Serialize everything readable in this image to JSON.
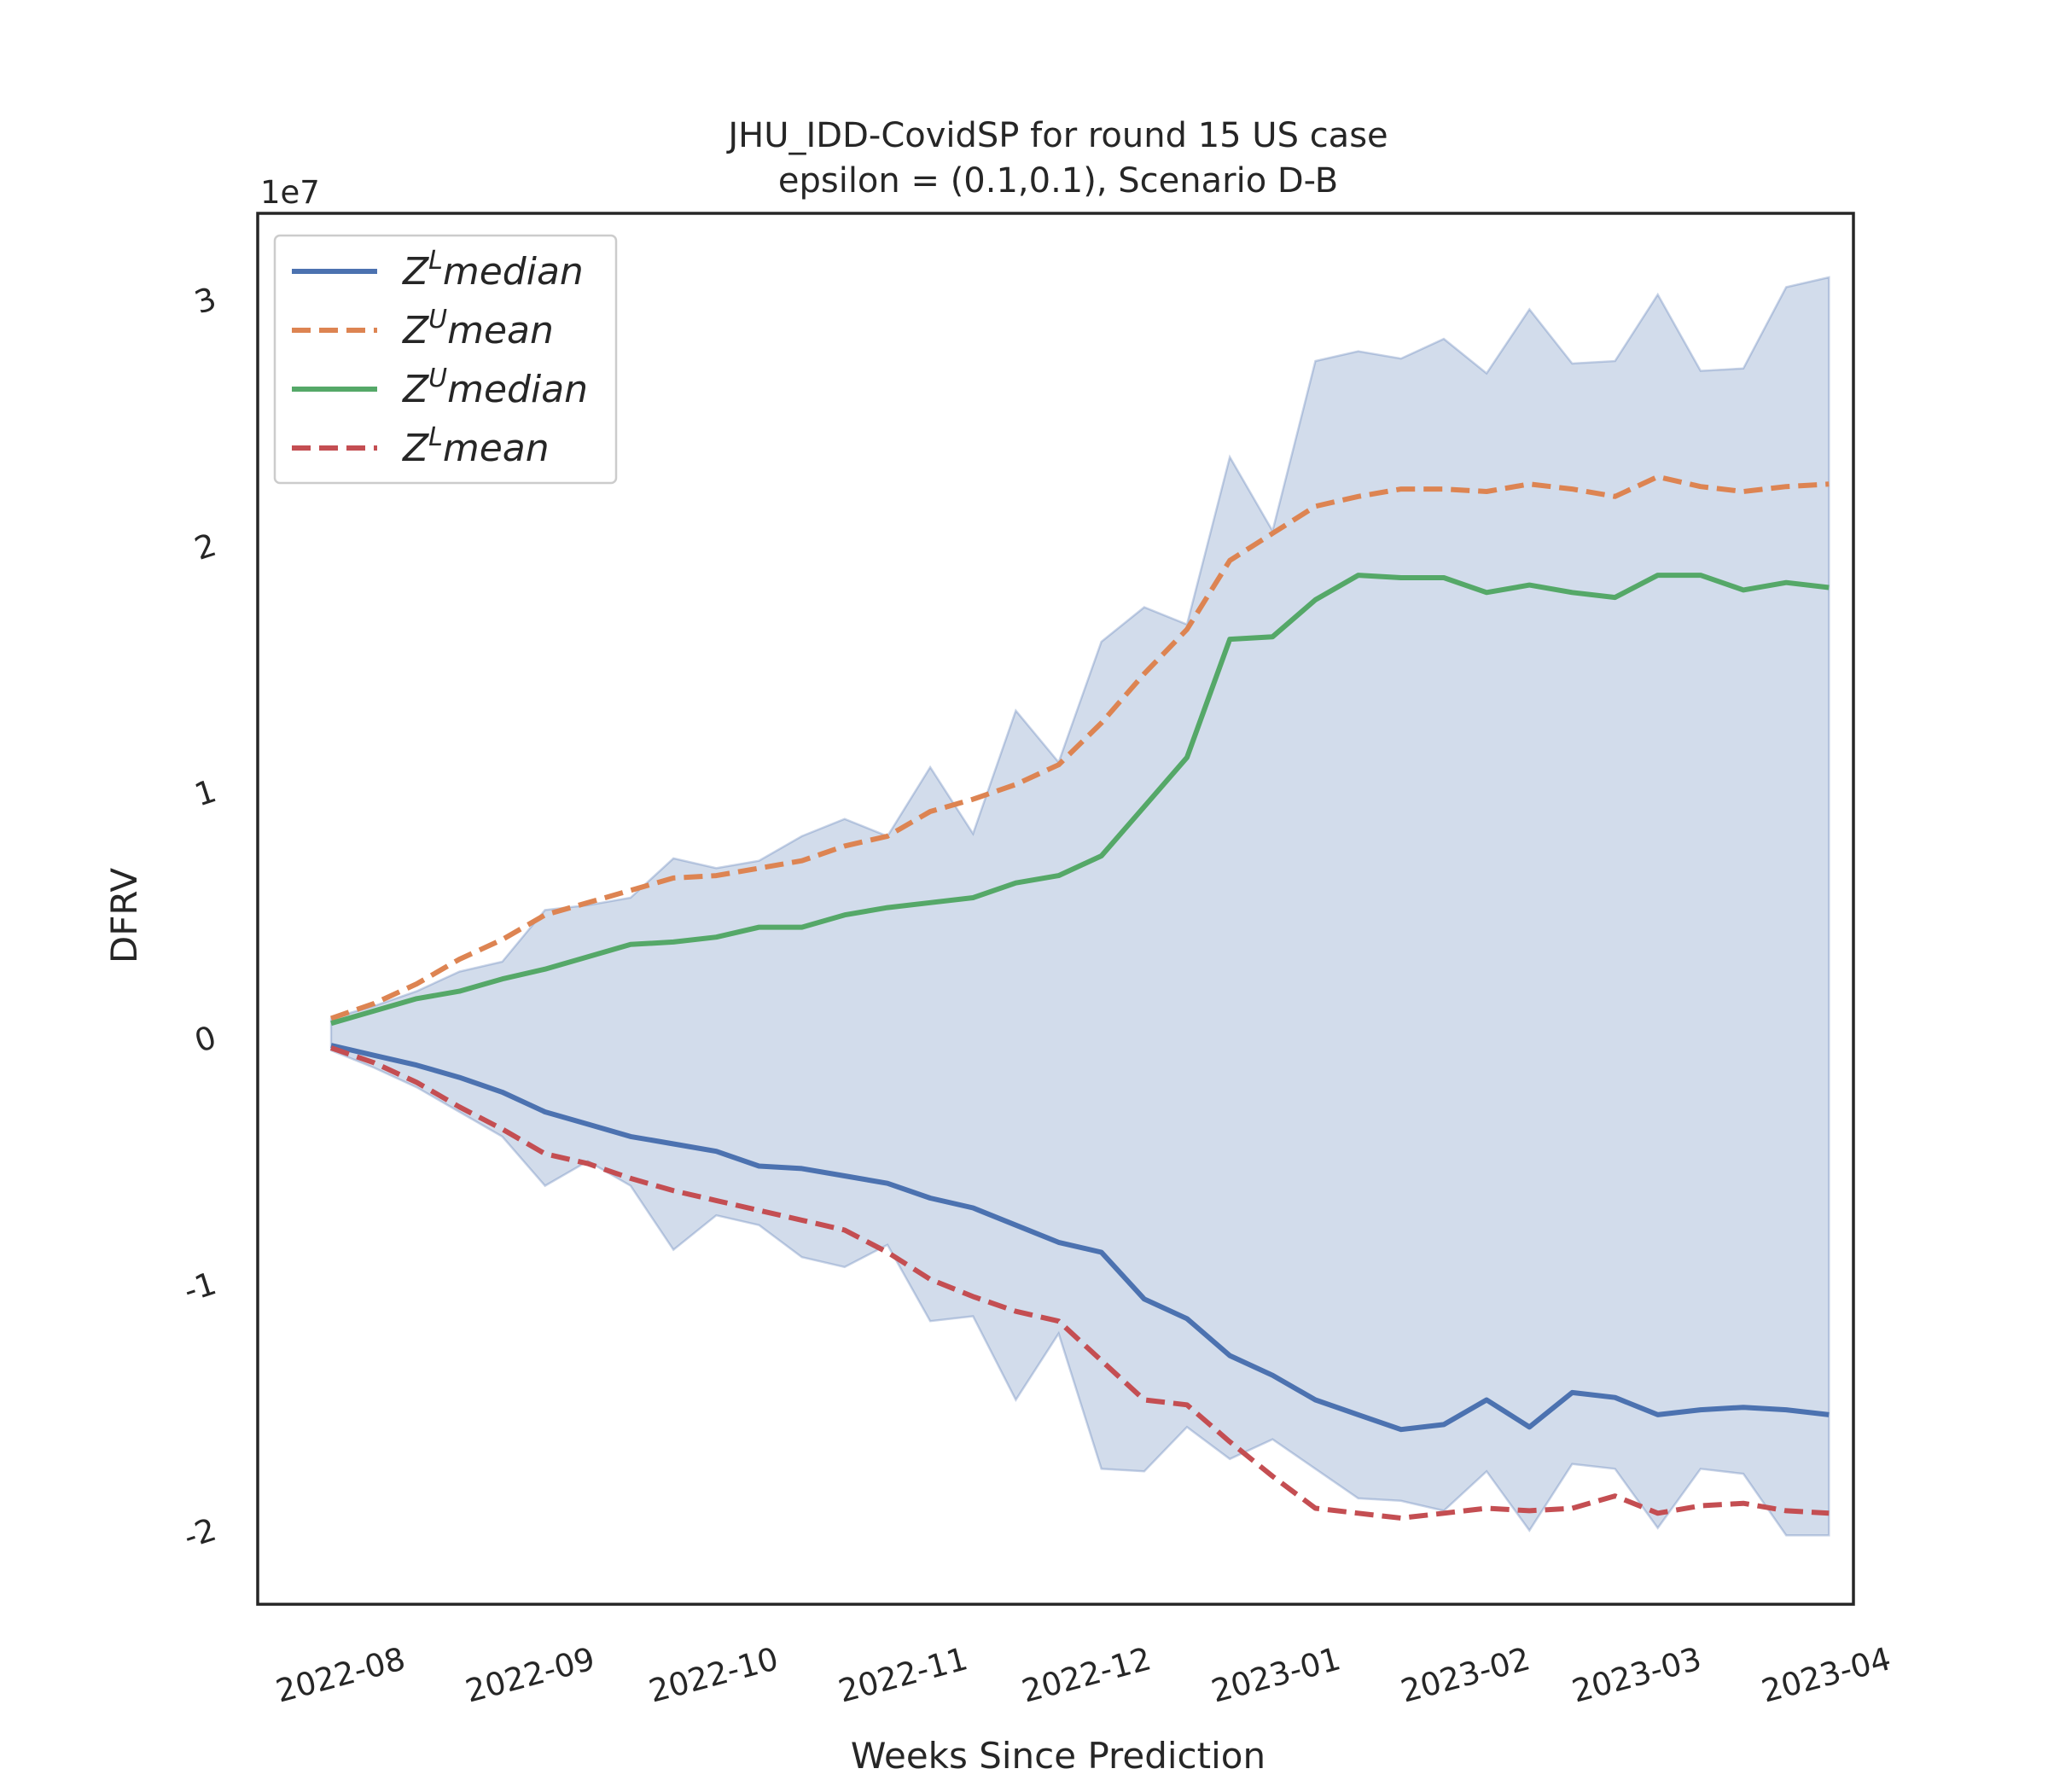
{
  "chart_data": {
    "type": "line",
    "title_line1": "JHU_IDD-CovidSP for round 15 US  case",
    "title_line2": "epsilon = (0.1,0.1), Scenario D-B",
    "xlabel": "Weeks Since Prediction",
    "ylabel": "DFRV",
    "y_multiplier": "1e7",
    "ylim": [
      -2.3,
      3.35
    ],
    "xlim": [
      "2022-07-18",
      "2023-04-05"
    ],
    "x_ticks": [
      "2022-08",
      "2022-09",
      "2022-10",
      "2022-11",
      "2022-12",
      "2023-01",
      "2023-02",
      "2023-03",
      "2023-04"
    ],
    "x_tick_dates": [
      "2022-08-01",
      "2022-09-01",
      "2022-10-01",
      "2022-11-01",
      "2022-12-01",
      "2023-01-01",
      "2023-02-01",
      "2023-03-01",
      "2023-04-01"
    ],
    "y_ticks": [
      -2,
      -1,
      0,
      1,
      2,
      3
    ],
    "grid": false,
    "legend_position": "upper-left",
    "x": [
      "2022-07-30",
      "2022-08-06",
      "2022-08-13",
      "2022-08-20",
      "2022-08-27",
      "2022-09-03",
      "2022-09-10",
      "2022-09-17",
      "2022-09-24",
      "2022-10-01",
      "2022-10-08",
      "2022-10-15",
      "2022-10-22",
      "2022-10-29",
      "2022-11-05",
      "2022-11-12",
      "2022-11-19",
      "2022-11-26",
      "2022-12-03",
      "2022-12-10",
      "2022-12-17",
      "2022-12-24",
      "2022-12-31",
      "2023-01-07",
      "2023-01-14",
      "2023-01-21",
      "2023-01-28",
      "2023-02-04",
      "2023-02-11",
      "2023-02-18",
      "2023-02-25",
      "2023-03-04",
      "2023-03-11",
      "2023-03-18",
      "2023-03-25",
      "2023-04-01"
    ],
    "series": [
      {
        "name": "Z",
        "sup": "L",
        "suffix": "median",
        "color": "#4c72b0",
        "dash": "solid",
        "values": [
          -0.03,
          -0.07,
          -0.11,
          -0.16,
          -0.22,
          -0.3,
          -0.35,
          -0.4,
          -0.43,
          -0.46,
          -0.52,
          -0.53,
          -0.56,
          -0.59,
          -0.65,
          -0.69,
          -0.76,
          -0.83,
          -0.87,
          -1.06,
          -1.14,
          -1.29,
          -1.37,
          -1.47,
          -1.53,
          -1.59,
          -1.57,
          -1.47,
          -1.58,
          -1.44,
          -1.46,
          -1.53,
          -1.51,
          -1.5,
          -1.51,
          -1.53
        ]
      },
      {
        "name": "Z",
        "sup": "U",
        "suffix": "mean",
        "color": "#dd8452",
        "dash": "dashed",
        "values": [
          0.08,
          0.14,
          0.22,
          0.32,
          0.4,
          0.5,
          0.55,
          0.6,
          0.65,
          0.66,
          0.69,
          0.72,
          0.78,
          0.82,
          0.92,
          0.97,
          1.03,
          1.11,
          1.28,
          1.48,
          1.66,
          1.94,
          2.05,
          2.16,
          2.2,
          2.23,
          2.23,
          2.22,
          2.25,
          2.23,
          2.2,
          2.28,
          2.24,
          2.22,
          2.24,
          2.25
        ]
      },
      {
        "name": "Z",
        "sup": "U",
        "suffix": "median",
        "color": "#55a868",
        "dash": "solid",
        "values": [
          0.06,
          0.11,
          0.16,
          0.19,
          0.24,
          0.28,
          0.33,
          0.38,
          0.39,
          0.41,
          0.45,
          0.45,
          0.5,
          0.53,
          0.55,
          0.57,
          0.63,
          0.66,
          0.74,
          0.94,
          1.14,
          1.62,
          1.63,
          1.78,
          1.88,
          1.87,
          1.87,
          1.81,
          1.84,
          1.81,
          1.79,
          1.88,
          1.88,
          1.82,
          1.85,
          1.83
        ]
      },
      {
        "name": "Z",
        "sup": "L",
        "suffix": "mean",
        "color": "#c44e52",
        "dash": "dashed",
        "values": [
          -0.04,
          -0.1,
          -0.18,
          -0.28,
          -0.37,
          -0.47,
          -0.51,
          -0.57,
          -0.62,
          -0.66,
          -0.7,
          -0.74,
          -0.78,
          -0.87,
          -0.98,
          -1.05,
          -1.11,
          -1.15,
          -1.31,
          -1.47,
          -1.49,
          -1.64,
          -1.78,
          -1.91,
          -1.93,
          -1.95,
          -1.93,
          -1.91,
          -1.92,
          -1.91,
          -1.86,
          -1.93,
          -1.9,
          -1.89,
          -1.92,
          -1.93
        ]
      }
    ],
    "band": {
      "color": "#4c72b0",
      "upper": [
        0.08,
        0.13,
        0.19,
        0.27,
        0.31,
        0.52,
        0.54,
        0.57,
        0.73,
        0.69,
        0.72,
        0.82,
        0.89,
        0.82,
        1.1,
        0.83,
        1.33,
        1.12,
        1.61,
        1.75,
        1.68,
        2.36,
        2.06,
        2.75,
        2.79,
        2.76,
        2.84,
        2.7,
        2.96,
        2.74,
        2.75,
        3.02,
        2.71,
        2.72,
        3.05,
        3.09
      ],
      "lower": [
        -0.05,
        -0.12,
        -0.2,
        -0.3,
        -0.4,
        -0.6,
        -0.5,
        -0.6,
        -0.86,
        -0.72,
        -0.76,
        -0.89,
        -0.93,
        -0.84,
        -1.15,
        -1.13,
        -1.47,
        -1.2,
        -1.75,
        -1.76,
        -1.58,
        -1.71,
        -1.63,
        -1.75,
        -1.87,
        -1.88,
        -1.92,
        -1.76,
        -2.0,
        -1.73,
        -1.75,
        -1.99,
        -1.75,
        -1.77,
        -2.02,
        -2.02
      ]
    }
  }
}
